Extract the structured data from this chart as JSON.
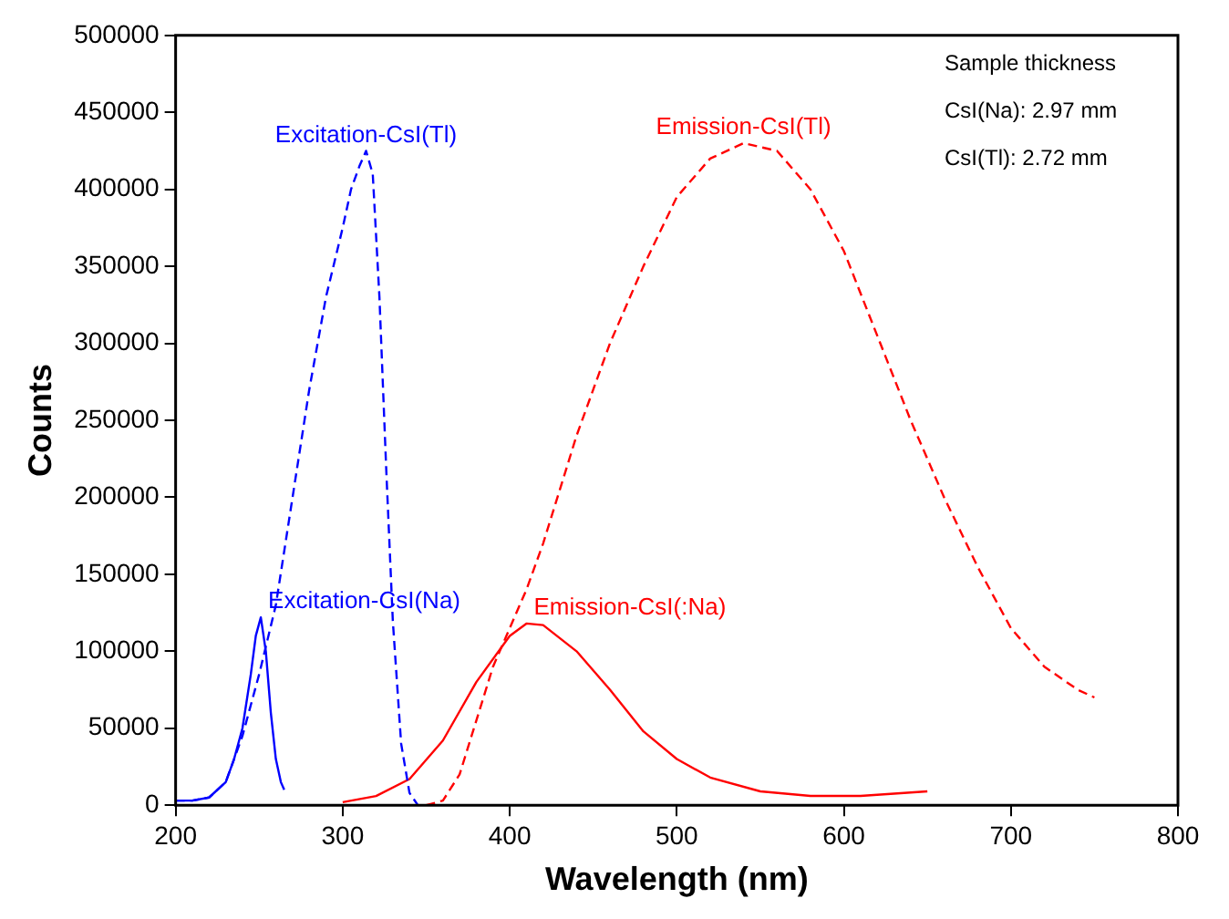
{
  "chart_data": {
    "type": "line",
    "xlabel": "Wavelength (nm)",
    "ylabel": "Counts",
    "xlim": [
      200,
      800
    ],
    "xticks": [
      200,
      300,
      400,
      500,
      600,
      700,
      800
    ],
    "ylim": [
      0,
      500000
    ],
    "yticks": [
      0,
      50000,
      100000,
      150000,
      200000,
      250000,
      300000,
      350000,
      400000,
      450000,
      500000
    ],
    "grid": false,
    "legend": false,
    "marker": "none",
    "annotations": [
      "Sample thickness",
      "CsI(Na): 2.97 mm",
      "CsI(Tl): 2.72 mm"
    ],
    "series": [
      {
        "name": "Excitation-CsI(Tl)",
        "color": "#0000ff",
        "line_style": "dashed",
        "x": [
          200,
          210,
          220,
          230,
          240,
          250,
          260,
          270,
          280,
          290,
          300,
          305,
          310,
          314,
          318,
          322,
          326,
          330,
          335,
          340,
          345
        ],
        "values": [
          3000,
          3000,
          5000,
          15000,
          45000,
          85000,
          130000,
          200000,
          270000,
          330000,
          375000,
          400000,
          415000,
          425000,
          410000,
          330000,
          220000,
          120000,
          40000,
          8000,
          0
        ]
      },
      {
        "name": "Excitation-CsI(Na)",
        "color": "#0000ff",
        "line_style": "solid",
        "x": [
          200,
          210,
          220,
          230,
          235,
          240,
          245,
          248,
          251,
          254,
          257,
          260,
          263,
          265
        ],
        "values": [
          3000,
          3000,
          5000,
          15000,
          30000,
          50000,
          85000,
          110000,
          122000,
          100000,
          60000,
          30000,
          15000,
          10000
        ]
      },
      {
        "name": "Emission-CsI(Tl)",
        "color": "#ff0000",
        "line_style": "dashed",
        "x": [
          350,
          360,
          370,
          380,
          390,
          400,
          410,
          420,
          440,
          460,
          480,
          500,
          520,
          540,
          560,
          580,
          600,
          620,
          640,
          660,
          680,
          700,
          720,
          740,
          750
        ],
        "values": [
          0,
          3000,
          20000,
          55000,
          90000,
          115000,
          140000,
          170000,
          240000,
          300000,
          350000,
          395000,
          420000,
          430000,
          425000,
          400000,
          360000,
          305000,
          250000,
          200000,
          155000,
          115000,
          90000,
          75000,
          70000
        ]
      },
      {
        "name": "Emission-CsI(:Na)",
        "color": "#ff0000",
        "line_style": "solid",
        "x": [
          300,
          320,
          340,
          360,
          380,
          400,
          410,
          420,
          440,
          460,
          480,
          500,
          520,
          550,
          580,
          610,
          650
        ],
        "values": [
          2000,
          6000,
          17000,
          42000,
          80000,
          110000,
          118000,
          117000,
          100000,
          75000,
          48000,
          30000,
          18000,
          9000,
          6000,
          6000,
          9000
        ]
      }
    ]
  }
}
